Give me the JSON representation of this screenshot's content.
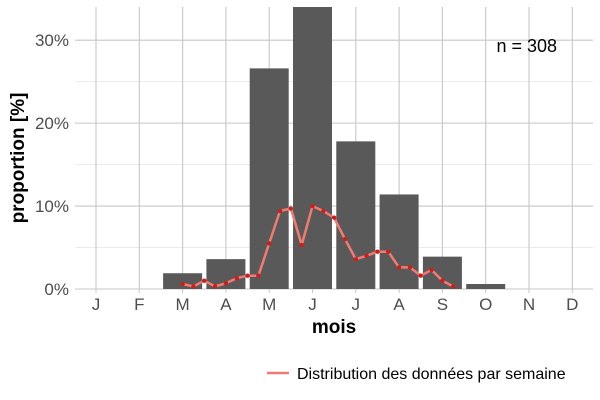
{
  "chart_data": {
    "type": "bar",
    "categories": [
      "J",
      "F",
      "M",
      "A",
      "M",
      "J",
      "J",
      "A",
      "S",
      "O",
      "N",
      "D"
    ],
    "values": [
      0,
      0,
      1.9,
      3.6,
      26.6,
      34.1,
      17.8,
      11.4,
      3.9,
      0.6,
      0,
      0
    ],
    "xlabel": "mois",
    "ylabel": "proportion [%]",
    "ylim": [
      0,
      34
    ],
    "yticks": [
      0,
      10,
      20,
      30
    ],
    "ytick_labels": [
      "0%",
      "10%",
      "20%",
      "30%"
    ],
    "grid": true,
    "annotation": "n = 308",
    "bar_color": "#595959",
    "line_color": "#f27a73",
    "point_color": "#cc1f1a",
    "weekly_series": {
      "name": "Distribution des données par semaine",
      "type": "line",
      "x_month": [
        3.0,
        3.25,
        3.5,
        3.75,
        4.0,
        4.25,
        4.5,
        4.75,
        5.0,
        5.25,
        5.5,
        5.75,
        6.0,
        6.25,
        6.5,
        6.75,
        7.0,
        7.25,
        7.5,
        7.75,
        8.0,
        8.25,
        8.5,
        8.75,
        9.0,
        9.25
      ],
      "values": [
        0.6,
        0.3,
        1.0,
        0.3,
        0.7,
        1.3,
        1.6,
        1.6,
        5.5,
        9.4,
        9.7,
        5.3,
        10.0,
        9.4,
        8.6,
        6.0,
        3.6,
        4.0,
        4.5,
        4.5,
        2.6,
        2.6,
        1.6,
        2.3,
        1.0,
        0.3
      ]
    },
    "legend": {
      "placement": "bottom-right",
      "entries": [
        "Distribution des données par semaine"
      ]
    }
  }
}
